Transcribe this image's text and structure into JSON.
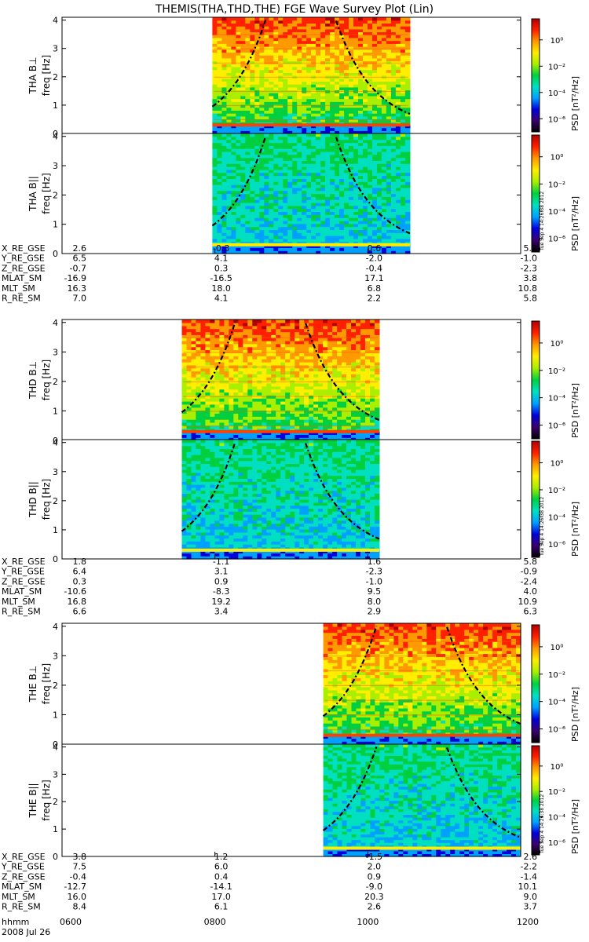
{
  "title": "THEMIS(THA,THD,THE) FGE Wave Survey Plot (Lin)",
  "colorbar": {
    "label": "PSD [nT²/Hz]",
    "ticks": [
      "10⁰",
      "10⁻²",
      "10⁻⁴",
      "10⁻⁶"
    ],
    "tick_exponents": [
      0,
      -2,
      -4,
      -6
    ],
    "range_exponent": [
      -7,
      1.6
    ],
    "colors": [
      "#000000",
      "#3a006e",
      "#0000dd",
      "#00a0ff",
      "#00e0c0",
      "#00d040",
      "#aaee00",
      "#ffee00",
      "#ff9900",
      "#ff2000",
      "#b00000"
    ]
  },
  "stamp": "Tue Sep  4 14:26:38 2012",
  "probes": [
    {
      "id": "THA",
      "panels": [
        {
          "ylabel": "THA B⊥",
          "yunit": "freq [Hz]",
          "colorbar": true,
          "stamp": false
        },
        {
          "ylabel": "THA B||",
          "yunit": "freq [Hz]",
          "colorbar": true,
          "stamp": true
        }
      ],
      "data_window": [
        "0758",
        "1033"
      ],
      "ephemeris": {
        "labels": [
          "X_RE_GSE",
          "Y_RE_GSE",
          "Z_RE_GSE",
          "MLAT_SM",
          "MLT_SM",
          "R_RE_SM"
        ],
        "columns": [
          [
            "2.6",
            "6.5",
            "-0.7",
            "-16.9",
            "16.3",
            "7.0"
          ],
          [
            "-0.3",
            "4.1",
            "0.3",
            "-16.5",
            "18.0",
            "4.1"
          ],
          [
            "0.6",
            "-2.0",
            "-0.4",
            "17.1",
            "6.8",
            "2.2"
          ],
          [
            "5.2",
            "-1.0",
            "-2.3",
            "3.8",
            "10.8",
            "5.8"
          ]
        ]
      }
    },
    {
      "id": "THD",
      "panels": [
        {
          "ylabel": "THD B⊥",
          "yunit": "freq [Hz]",
          "colorbar": true,
          "stamp": false
        },
        {
          "ylabel": "THD B||",
          "yunit": "freq [Hz]",
          "colorbar": true,
          "stamp": true
        }
      ],
      "data_window": [
        "0734",
        "1009"
      ],
      "ephemeris": {
        "labels": [
          "X_RE_GSE",
          "Y_RE_GSE",
          "Z_RE_GSE",
          "MLAT_SM",
          "MLT_SM",
          "R_RE_SM"
        ],
        "columns": [
          [
            "1.8",
            "6.4",
            "0.3",
            "-10.6",
            "16.8",
            "6.6"
          ],
          [
            "-1.1",
            "3.1",
            "0.9",
            "-8.3",
            "19.2",
            "3.4"
          ],
          [
            "1.6",
            "-2.3",
            "-1.0",
            "9.5",
            "8.0",
            "2.9"
          ],
          [
            "5.8",
            "-0.9",
            "-2.4",
            "4.0",
            "10.9",
            "6.3"
          ]
        ]
      }
    },
    {
      "id": "THE",
      "panels": [
        {
          "ylabel": "THE B⊥",
          "yunit": "freq [Hz]",
          "colorbar": true,
          "stamp": false
        },
        {
          "ylabel": "THE B||",
          "yunit": "freq [Hz]",
          "colorbar": true,
          "stamp": true
        }
      ],
      "data_window": [
        "0925",
        "1200"
      ],
      "ephemeris": {
        "labels": [
          "X_RE_GSE",
          "Y_RE_GSE",
          "Z_RE_GSE",
          "MLAT_SM",
          "MLT_SM",
          "R_RE_SM"
        ],
        "columns": [
          [
            "3.8",
            "7.5",
            "-0.4",
            "-12.7",
            "16.0",
            "8.4"
          ],
          [
            "1.2",
            "6.0",
            "0.4",
            "-14.1",
            "17.0",
            "6.1"
          ],
          [
            "-1.5",
            "2.0",
            "0.9",
            "-9.0",
            "20.3",
            "2.6"
          ],
          [
            "2.6",
            "-2.2",
            "-1.4",
            "10.1",
            "9.0",
            "3.7"
          ]
        ]
      }
    }
  ],
  "time_axis": {
    "label": "hhmm",
    "ticks": [
      "0600",
      "0800",
      "1000",
      "1200"
    ],
    "date": "2008 Jul 26"
  },
  "chart_data": {
    "type": "heatmap",
    "title": "THEMIS(THA,THD,THE) FGE Wave Survey Plot (Lin)",
    "xlabel": "hhmm",
    "x_ticks": [
      "0600",
      "0800",
      "1000",
      "1200"
    ],
    "xlim": [
      "0600",
      "1200"
    ],
    "ylabel": "freq [Hz]",
    "ylim": [
      0,
      4.1
    ],
    "y_ticks": [
      0,
      1,
      2,
      3,
      4
    ],
    "zlabel": "PSD [nT²/Hz]",
    "zscale": "log",
    "z_ticks": [
      "10⁰",
      "10⁻²",
      "10⁻⁴",
      "10⁻⁶"
    ],
    "overlay": "dash-dot curves (gyrofrequency lines)",
    "panels": [
      "THA B⊥",
      "THA B||",
      "THD B⊥",
      "THD B||",
      "THE B⊥",
      "THE B||"
    ]
  }
}
